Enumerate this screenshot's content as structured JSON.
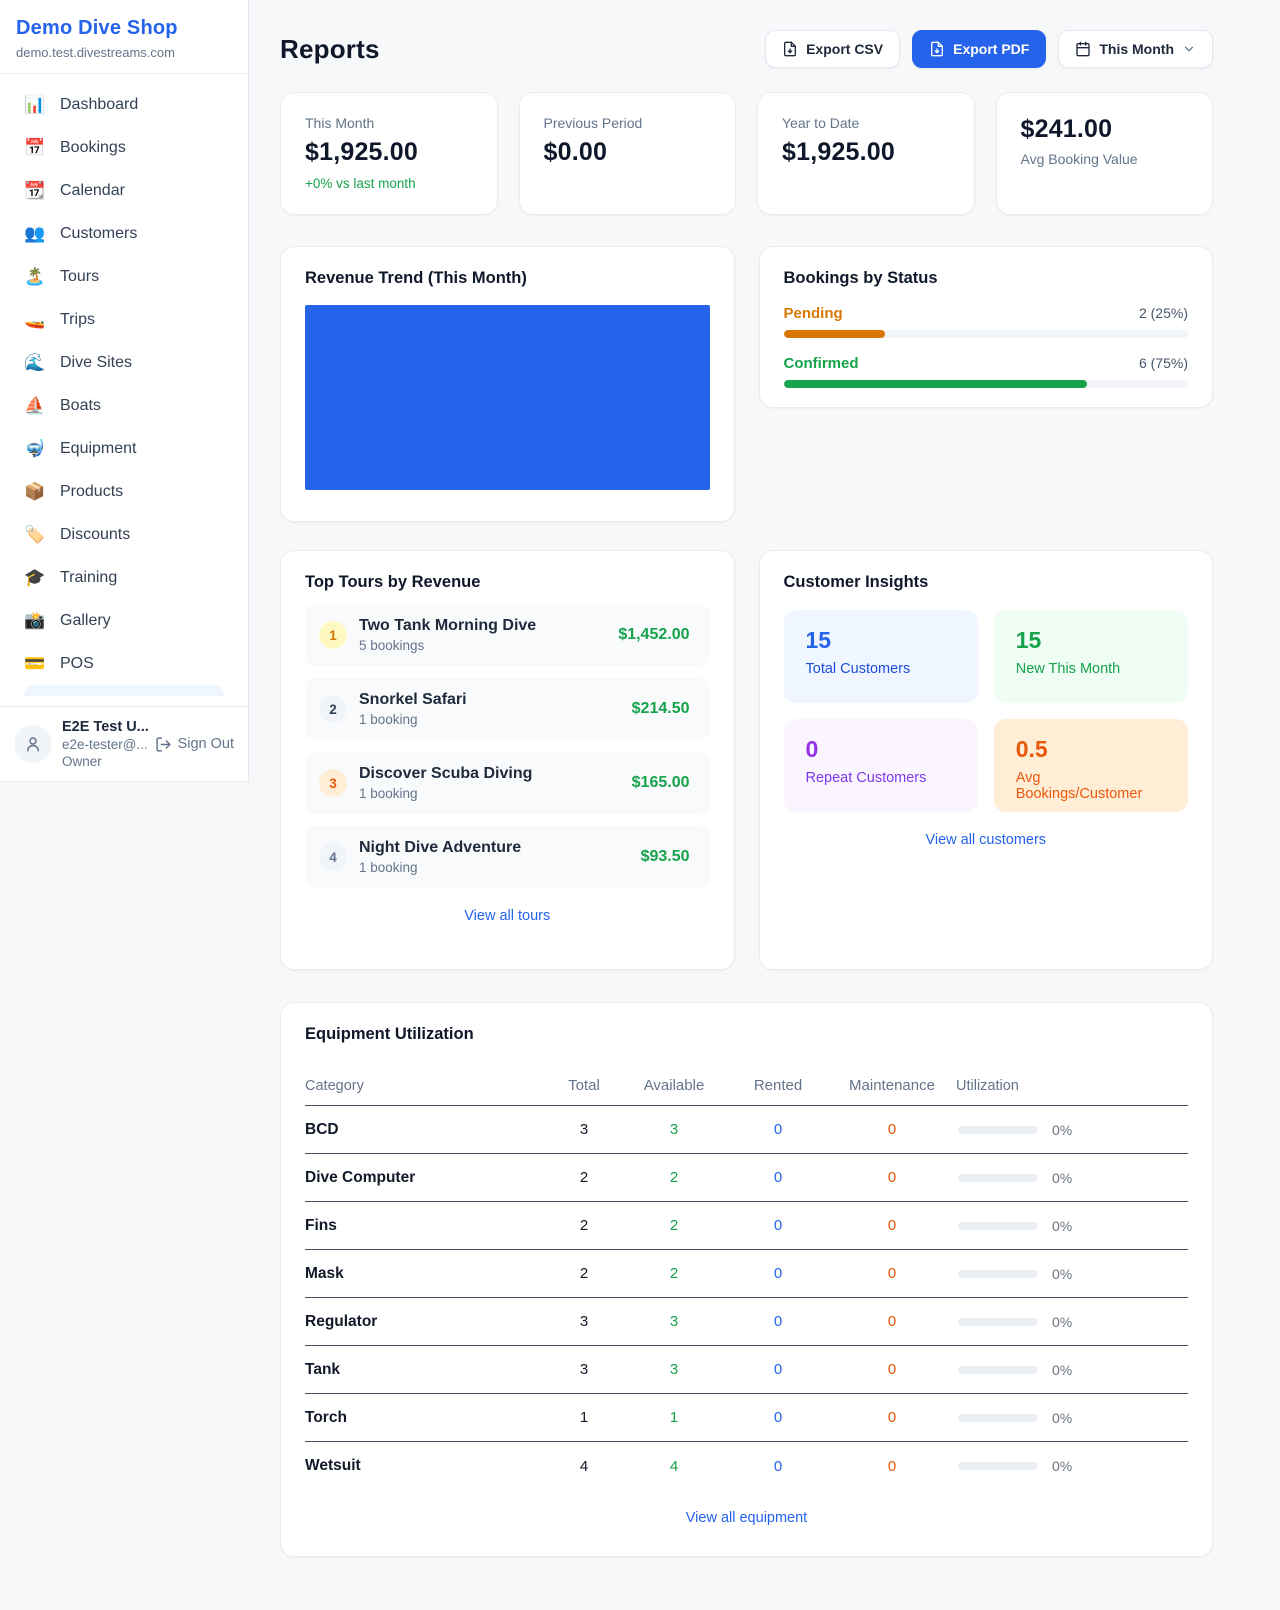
{
  "sidebar": {
    "brand": {
      "name": "Demo Dive Shop",
      "domain": "demo.test.divestreams.com"
    },
    "nav": [
      {
        "label": "Dashboard",
        "glyph": "📊"
      },
      {
        "label": "Bookings",
        "glyph": "📅"
      },
      {
        "label": "Calendar",
        "glyph": "📆"
      },
      {
        "label": "Customers",
        "glyph": "👥"
      },
      {
        "label": "Tours",
        "glyph": "🏝️"
      },
      {
        "label": "Trips",
        "glyph": "🚤"
      },
      {
        "label": "Dive Sites",
        "glyph": "🌊"
      },
      {
        "label": "Boats",
        "glyph": "⛵"
      },
      {
        "label": "Equipment",
        "glyph": "🤿"
      },
      {
        "label": "Products",
        "glyph": "📦"
      },
      {
        "label": "Discounts",
        "glyph": "🏷️"
      },
      {
        "label": "Training",
        "glyph": "🎓"
      },
      {
        "label": "Gallery",
        "glyph": "📸"
      },
      {
        "label": "POS",
        "glyph": "💳"
      }
    ],
    "user": {
      "name": "E2E Test U...",
      "email": "e2e-tester@...",
      "role": "Owner",
      "sign_out": "Sign Out"
    }
  },
  "header": {
    "title": "Reports",
    "export_csv": "Export CSV",
    "export_pdf": "Export PDF",
    "period": "This Month"
  },
  "stats": [
    {
      "label": "This Month",
      "value": "$1,925.00",
      "delta": "+0% vs last month"
    },
    {
      "label": "Previous Period",
      "value": "$0.00"
    },
    {
      "label": "Year to Date",
      "value": "$1,925.00"
    },
    {
      "label": "Avg Booking Value",
      "value": "$241.00"
    }
  ],
  "revenue_trend": {
    "title": "Revenue Trend (This Month)",
    "fill_color": "#2563eb"
  },
  "bookings_by_status": {
    "title": "Bookings by Status",
    "rows": [
      {
        "label": "Pending",
        "count": "2 (25%)",
        "pct": 25,
        "color": "#d97706"
      },
      {
        "label": "Confirmed",
        "count": "6 (75%)",
        "pct": 75,
        "color": "#16a34a"
      }
    ]
  },
  "top_tours": {
    "title": "Top Tours by Revenue",
    "items": [
      {
        "rank": "1",
        "name": "Two Tank Morning Dive",
        "bookings": "5 bookings",
        "amount": "$1,452.00",
        "badge_bg": "#fef9c3",
        "badge_color": "#d97706"
      },
      {
        "rank": "2",
        "name": "Snorkel Safari",
        "bookings": "1 booking",
        "amount": "$214.50",
        "badge_bg": "#f1f5f9",
        "badge_color": "#334155"
      },
      {
        "rank": "3",
        "name": "Discover Scuba Diving",
        "bookings": "1 booking",
        "amount": "$165.00",
        "badge_bg": "#ffedd5",
        "badge_color": "#ea580c"
      },
      {
        "rank": "4",
        "name": "Night Dive Adventure",
        "bookings": "1 booking",
        "amount": "$93.50",
        "badge_bg": "#f1f5f9",
        "badge_color": "#64748b"
      }
    ],
    "link": "View all tours"
  },
  "customer_insights": {
    "title": "Customer Insights",
    "tiles": [
      {
        "value": "15",
        "label": "Total Customers",
        "bg": "#eff6ff",
        "value_color": "#2563eb",
        "label_color": "#1d4ed8"
      },
      {
        "value": "15",
        "label": "New This Month",
        "bg": "#f0fdf4",
        "value_color": "#16a34a",
        "label_color": "#16a34a"
      },
      {
        "value": "0",
        "label": "Repeat Customers",
        "bg": "#faf5ff",
        "value_color": "#9333ea",
        "label_color": "#7c3aed"
      },
      {
        "value": "0.5",
        "label": "Avg Bookings/Customer",
        "bg": "#ffedd5",
        "value_color": "#ea580c",
        "label_color": "#ea580c"
      }
    ],
    "link": "View all customers"
  },
  "equipment": {
    "title": "Equipment Utilization",
    "columns": {
      "category": "Category",
      "total": "Total",
      "available": "Available",
      "rented": "Rented",
      "maintenance": "Maintenance",
      "utilization": "Utilization"
    },
    "rows": [
      {
        "category": "BCD",
        "total": "3",
        "available": "3",
        "rented": "0",
        "maintenance": "0",
        "utilization": "0%"
      },
      {
        "category": "Dive Computer",
        "total": "2",
        "available": "2",
        "rented": "0",
        "maintenance": "0",
        "utilization": "0%"
      },
      {
        "category": "Fins",
        "total": "2",
        "available": "2",
        "rented": "0",
        "maintenance": "0",
        "utilization": "0%"
      },
      {
        "category": "Mask",
        "total": "2",
        "available": "2",
        "rented": "0",
        "maintenance": "0",
        "utilization": "0%"
      },
      {
        "category": "Regulator",
        "total": "3",
        "available": "3",
        "rented": "0",
        "maintenance": "0",
        "utilization": "0%"
      },
      {
        "category": "Tank",
        "total": "3",
        "available": "3",
        "rented": "0",
        "maintenance": "0",
        "utilization": "0%"
      },
      {
        "category": "Torch",
        "total": "1",
        "available": "1",
        "rented": "0",
        "maintenance": "0",
        "utilization": "0%"
      },
      {
        "category": "Wetsuit",
        "total": "4",
        "available": "4",
        "rented": "0",
        "maintenance": "0",
        "utilization": "0%"
      }
    ],
    "link": "View all equipment"
  }
}
